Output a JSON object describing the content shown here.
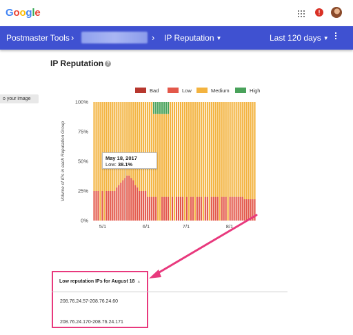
{
  "google_logo": {
    "letters": [
      {
        "ch": "G",
        "color": "#4285F4"
      },
      {
        "ch": "o",
        "color": "#EA4335"
      },
      {
        "ch": "o",
        "color": "#FBBC05"
      },
      {
        "ch": "g",
        "color": "#4285F4"
      },
      {
        "ch": "l",
        "color": "#34A853"
      },
      {
        "ch": "e",
        "color": "#EA4335"
      }
    ]
  },
  "header": {
    "notification_count": "!",
    "icons": [
      "apps-grid-icon",
      "notification-icon",
      "avatar"
    ]
  },
  "nav": {
    "title": "Postmaster Tools",
    "separator": "›",
    "dashboard": "IP Reputation",
    "date_range": "Last 120 days"
  },
  "page": {
    "title": "IP Reputation",
    "help_icon": "?",
    "side_button": "o your image"
  },
  "legend": [
    {
      "label": "Bad",
      "color": "#b7372e"
    },
    {
      "label": "Low",
      "color": "#e3584a"
    },
    {
      "label": "Medium",
      "color": "#f3b33f"
    },
    {
      "label": "High",
      "color": "#49a25b"
    }
  ],
  "chart_data": {
    "type": "bar",
    "stacked": true,
    "ylabel": "Volume of IPs in each Reputation Group",
    "yticks": [
      "0%",
      "25%",
      "50%",
      "75%",
      "100%"
    ],
    "ylim": [
      0,
      100
    ],
    "xticks": [
      "5/1",
      "6/1",
      "7/1",
      "8/1"
    ],
    "series": [
      {
        "name": "Low",
        "color": "#e3584a",
        "values": [
          25,
          25,
          25,
          0,
          25,
          0,
          25,
          25,
          25,
          25,
          25,
          28,
          30,
          32,
          34,
          36,
          38,
          38,
          36,
          34,
          30,
          28,
          25,
          25,
          25,
          25,
          20,
          20,
          20,
          20,
          20,
          0,
          0,
          20,
          20,
          20,
          20,
          0,
          20,
          0,
          20,
          20,
          20,
          20,
          0,
          20,
          0,
          20,
          20,
          0,
          20,
          20,
          20,
          0,
          20,
          20,
          0,
          20,
          20,
          20,
          20,
          0,
          20,
          20,
          20,
          0,
          20,
          20,
          20,
          20,
          20,
          20,
          20,
          18,
          18,
          18,
          18,
          18,
          18
        ]
      },
      {
        "name": "Medium",
        "color": "#f3b33f",
        "values": [
          75,
          75,
          75,
          100,
          75,
          100,
          75,
          75,
          75,
          75,
          75,
          72,
          70,
          68,
          66,
          64,
          62,
          62,
          64,
          66,
          70,
          72,
          75,
          75,
          75,
          75,
          80,
          80,
          80,
          70,
          70,
          90,
          90,
          70,
          70,
          70,
          70,
          100,
          80,
          100,
          80,
          80,
          80,
          80,
          100,
          80,
          100,
          80,
          80,
          100,
          80,
          80,
          80,
          100,
          80,
          80,
          100,
          80,
          80,
          80,
          80,
          100,
          80,
          80,
          80,
          100,
          80,
          80,
          80,
          80,
          80,
          80,
          80,
          82,
          82,
          82,
          82,
          82,
          82
        ]
      },
      {
        "name": "High",
        "color": "#49a25b",
        "values": [
          0,
          0,
          0,
          0,
          0,
          0,
          0,
          0,
          0,
          0,
          0,
          0,
          0,
          0,
          0,
          0,
          0,
          0,
          0,
          0,
          0,
          0,
          0,
          0,
          0,
          0,
          0,
          0,
          0,
          10,
          10,
          10,
          10,
          10,
          10,
          10,
          10,
          0,
          0,
          0,
          0,
          0,
          0,
          0,
          0,
          0,
          0,
          0,
          0,
          0,
          0,
          0,
          0,
          0,
          0,
          0,
          0,
          0,
          0,
          0,
          0,
          0,
          0,
          0,
          0,
          0,
          0,
          0,
          0,
          0,
          0,
          0,
          0,
          0,
          0,
          0,
          0,
          0,
          0
        ]
      }
    ]
  },
  "tooltip": {
    "date": "May 18, 2017",
    "label": "Low:",
    "value": "38.1%"
  },
  "table": {
    "title": "Low reputation IPs for August 18",
    "rows": [
      "208.76.24.57-208.76.24.60",
      "208.76.24.170-208.76.24.171"
    ]
  }
}
